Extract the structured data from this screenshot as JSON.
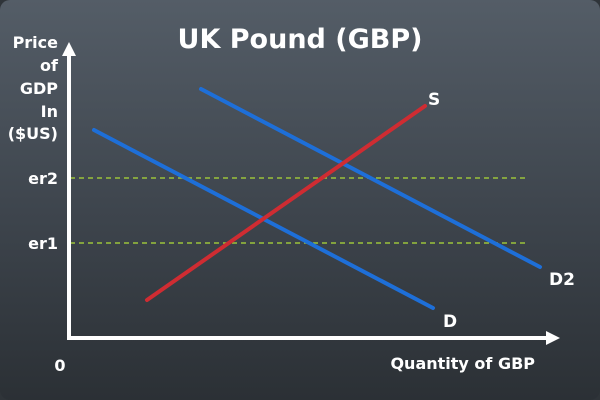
{
  "title": "UK Pound (GBP)",
  "y_axis_label": [
    "Price",
    "of",
    "GDP",
    "In",
    "($US)"
  ],
  "x_axis_label": "Quantity of GBP",
  "origin_label": "0",
  "price_levels": [
    {
      "label": "er2",
      "line_color": "#9bc33a"
    },
    {
      "label": "er1",
      "line_color": "#9bc33a"
    }
  ],
  "curves": [
    {
      "label": "S",
      "meaning": "supply",
      "color": "#cf2c32"
    },
    {
      "label": "D",
      "meaning": "demand",
      "color": "#1e6fd8"
    },
    {
      "label": "D2",
      "meaning": "demand",
      "color": "#1e6fd8"
    }
  ],
  "colors": {
    "axis": "#ffffff",
    "supply": "#cf2c32",
    "demand": "#1e6fd8",
    "guide": "#9bc33a"
  }
}
